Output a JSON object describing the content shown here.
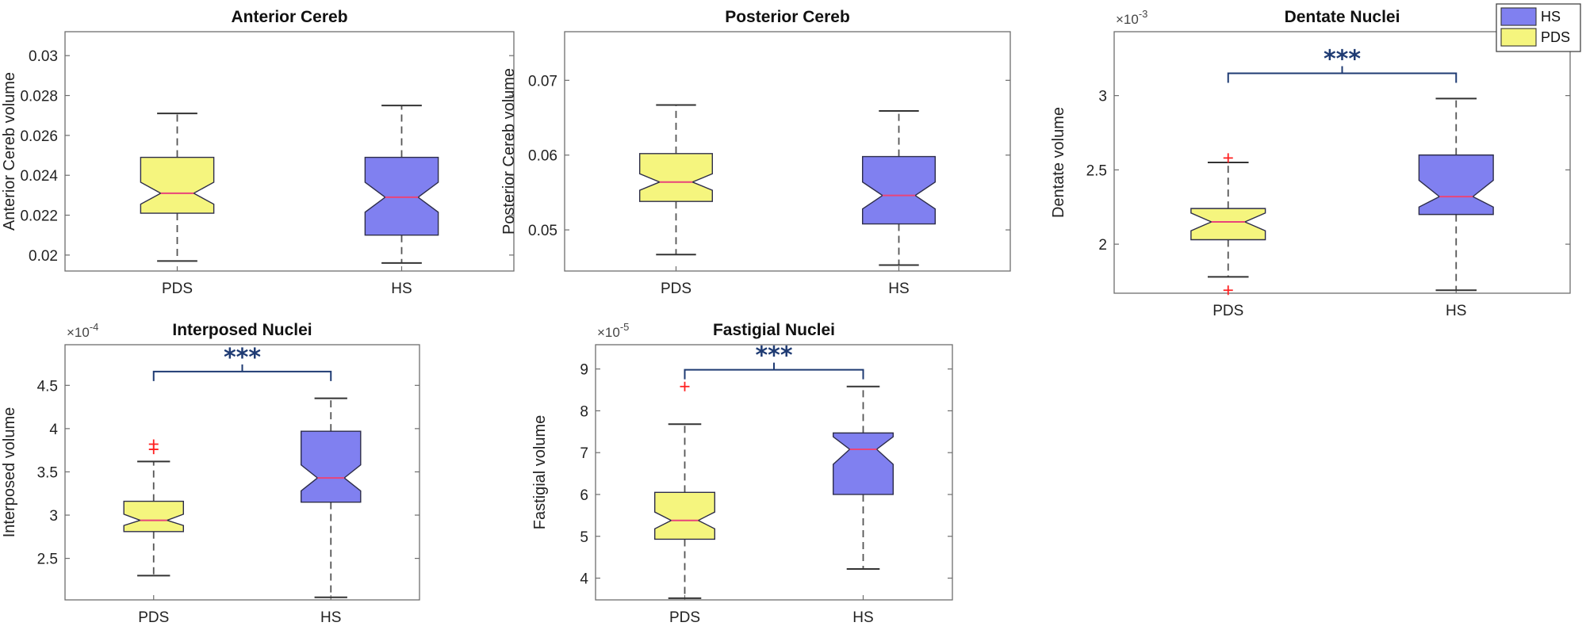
{
  "legend": {
    "position": "top-right",
    "entries": [
      {
        "label": "HS",
        "color": "#8080f0"
      },
      {
        "label": "PDS",
        "color": "#f5f57e"
      }
    ]
  },
  "colors": {
    "PDS": "#f5f57e",
    "HS": "#8080f0",
    "median": "#e8457a",
    "outlier": "#ff2020",
    "bracket": "#1f3b73",
    "whisker": "#555555"
  },
  "chart_data": [
    {
      "type": "box",
      "title": "Anterior Cereb",
      "ylabel": "Anterior Cereb  volume",
      "exponent": "",
      "ylim": [
        0.0192,
        0.0312
      ],
      "yticks": [
        0.02,
        0.022,
        0.024,
        0.026,
        0.028,
        0.03
      ],
      "ytick_labels": [
        "0.02",
        "0.022",
        "0.024",
        "0.026",
        "0.028",
        "0.03"
      ],
      "categories": [
        "PDS",
        "HS"
      ],
      "boxes": [
        {
          "group": "PDS",
          "whisker_low": 0.0197,
          "q1": 0.0221,
          "notch_low": 0.02255,
          "median": 0.0231,
          "notch_high": 0.02365,
          "q3": 0.0249,
          "whisker_high": 0.0271,
          "outliers": []
        },
        {
          "group": "HS",
          "whisker_low": 0.0196,
          "q1": 0.021,
          "notch_low": 0.02215,
          "median": 0.0229,
          "notch_high": 0.02365,
          "q3": 0.0249,
          "whisker_high": 0.0275,
          "outliers": []
        }
      ],
      "significance": ""
    },
    {
      "type": "box",
      "title": "Posterior Cereb",
      "ylabel": "Posterior Cereb  volume",
      "exponent": "",
      "ylim": [
        0.0445,
        0.0765
      ],
      "yticks": [
        0.05,
        0.06,
        0.07
      ],
      "ytick_labels": [
        "0.05",
        "0.06",
        "0.07"
      ],
      "categories": [
        "PDS",
        "HS"
      ],
      "boxes": [
        {
          "group": "PDS",
          "whisker_low": 0.0467,
          "q1": 0.0538,
          "notch_low": 0.0553,
          "median": 0.0564,
          "notch_high": 0.0575,
          "q3": 0.0602,
          "whisker_high": 0.0667,
          "outliers": []
        },
        {
          "group": "HS",
          "whisker_low": 0.0453,
          "q1": 0.0508,
          "notch_low": 0.0528,
          "median": 0.0546,
          "notch_high": 0.0564,
          "q3": 0.0598,
          "whisker_high": 0.0659,
          "outliers": []
        }
      ],
      "significance": ""
    },
    {
      "type": "box",
      "title": "Dentate Nuclei",
      "ylabel": "Dentate volume",
      "exponent": "×10",
      "exponent_power": "-3",
      "ylim": [
        1.67,
        3.43
      ],
      "yticks": [
        2,
        2.5,
        3
      ],
      "ytick_labels": [
        "2",
        "2.5",
        "3"
      ],
      "categories": [
        "PDS",
        "HS"
      ],
      "boxes": [
        {
          "group": "PDS",
          "whisker_low": 1.78,
          "q1": 2.03,
          "notch_low": 2.09,
          "median": 2.15,
          "notch_high": 2.21,
          "q3": 2.24,
          "whisker_high": 2.55,
          "outliers": [
            2.58,
            1.69
          ]
        },
        {
          "group": "HS",
          "whisker_low": 1.69,
          "q1": 2.2,
          "notch_low": 2.25,
          "median": 2.32,
          "notch_high": 2.43,
          "q3": 2.6,
          "whisker_high": 2.98,
          "outliers": []
        }
      ],
      "significance": "***",
      "bracket_y": 3.15
    },
    {
      "type": "box",
      "title": "Interposed Nuclei",
      "ylabel": "Interposed volume",
      "exponent": "×10",
      "exponent_power": "-4",
      "ylim": [
        2.02,
        4.97
      ],
      "yticks": [
        2.5,
        3,
        3.5,
        4,
        4.5
      ],
      "ytick_labels": [
        "2.5",
        "3",
        "3.5",
        "4",
        "4.5"
      ],
      "categories": [
        "PDS",
        "HS"
      ],
      "boxes": [
        {
          "group": "PDS",
          "whisker_low": 2.3,
          "q1": 2.81,
          "notch_low": 2.88,
          "median": 2.94,
          "notch_high": 3.01,
          "q3": 3.16,
          "whisker_high": 3.62,
          "outliers": [
            3.82,
            3.76
          ]
        },
        {
          "group": "HS",
          "whisker_low": 2.05,
          "q1": 3.15,
          "notch_low": 3.28,
          "median": 3.43,
          "notch_high": 3.58,
          "q3": 3.97,
          "whisker_high": 4.35,
          "outliers": []
        }
      ],
      "significance": "***",
      "bracket_y": 4.66
    },
    {
      "type": "box",
      "title": "Fastigial Nuclei",
      "ylabel": "Fastigial volume",
      "exponent": "×10",
      "exponent_power": "-5",
      "ylim": [
        3.48,
        9.58
      ],
      "yticks": [
        4,
        5,
        6,
        7,
        8,
        9
      ],
      "ytick_labels": [
        "4",
        "5",
        "6",
        "7",
        "8",
        "9"
      ],
      "categories": [
        "PDS",
        "HS"
      ],
      "boxes": [
        {
          "group": "PDS",
          "whisker_low": 3.52,
          "q1": 4.93,
          "notch_low": 5.18,
          "median": 5.38,
          "notch_high": 5.58,
          "q3": 6.05,
          "whisker_high": 7.68,
          "outliers": [
            8.58
          ]
        },
        {
          "group": "HS",
          "whisker_low": 4.22,
          "q1": 6.0,
          "notch_low": 6.72,
          "median": 7.08,
          "notch_high": 7.38,
          "q3": 7.47,
          "whisker_high": 8.58,
          "outliers": []
        }
      ],
      "significance": "***",
      "bracket_y": 8.98
    }
  ]
}
